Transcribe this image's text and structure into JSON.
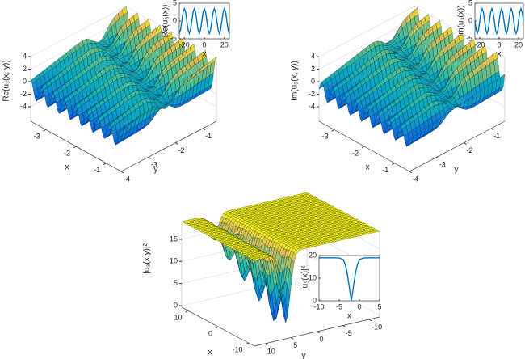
{
  "chart_data": [
    {
      "type": "surface",
      "zlabel": "Re(u₃(x, y))",
      "xlabel": "x",
      "ylabel": "y",
      "xlim": [
        -3.5,
        -0.5
      ],
      "xticks": [
        -3,
        -2,
        -1
      ],
      "ylim": [
        -4,
        -0.5
      ],
      "yticks": [
        -4,
        -3,
        -2,
        -1
      ],
      "zlim": [
        -4,
        4
      ],
      "zticks": [
        -4,
        -2,
        0,
        2,
        4
      ]
    },
    {
      "type": "line",
      "ylabel": "Re(u₃(x))",
      "xlabel": "x",
      "color": "#0072bd",
      "x": [
        -25,
        -23.75,
        -22.5,
        -21.25,
        -20,
        -18.75,
        -17.5,
        -16.25,
        -15,
        -13.75,
        -12.5,
        -11.25,
        -10,
        -8.75,
        -7.5,
        -6.25,
        -5,
        -3.75,
        -2.5,
        -1.25,
        0,
        1.25,
        2.5,
        3.75,
        5,
        6.25,
        7.5,
        8.75,
        10,
        11.25,
        12.5,
        13.75,
        15,
        16.25,
        17.5,
        18.75,
        20,
        21.25,
        22.5,
        23.75,
        25
      ],
      "values": [
        -3.5,
        -2.47,
        0,
        2.47,
        3.5,
        2.47,
        0,
        -2.47,
        -3.5,
        -2.47,
        0,
        2.47,
        3.5,
        2.47,
        0,
        -2.47,
        -3.5,
        -2.47,
        0,
        2.47,
        3.5,
        2.47,
        0,
        -2.47,
        -3.5,
        -2.47,
        0,
        2.47,
        3.5,
        2.47,
        0,
        -2.47,
        -3.5,
        -2.47,
        0,
        2.47,
        3.5,
        2.47,
        0,
        -2.47,
        -3.5
      ],
      "xlim": [
        -25,
        25
      ],
      "xticks": [
        -20,
        0,
        20
      ],
      "ylim": [
        -5,
        5
      ],
      "yticks": [
        -5,
        0,
        5
      ]
    },
    {
      "type": "surface",
      "zlabel": "Im(u₃(x, y))",
      "xlabel": "x",
      "ylabel": "y",
      "xlim": [
        -3.5,
        -0.5
      ],
      "xticks": [
        -3,
        -2,
        -1
      ],
      "ylim": [
        -4,
        -0.5
      ],
      "yticks": [
        -4,
        -3,
        -2,
        -1
      ],
      "zlim": [
        -4,
        4
      ],
      "zticks": [
        -4,
        -2,
        0,
        2,
        4
      ]
    },
    {
      "type": "line",
      "ylabel": "Im(u₃(x))",
      "xlabel": "x",
      "color": "#0072bd",
      "x": [
        -25,
        -23.75,
        -22.5,
        -21.25,
        -20,
        -18.75,
        -17.5,
        -16.25,
        -15,
        -13.75,
        -12.5,
        -11.25,
        -10,
        -8.75,
        -7.5,
        -6.25,
        -5,
        -3.75,
        -2.5,
        -1.25,
        0,
        1.25,
        2.5,
        3.75,
        5,
        6.25,
        7.5,
        8.75,
        10,
        11.25,
        12.5,
        13.75,
        15,
        16.25,
        17.5,
        18.75,
        20,
        21.25,
        22.5,
        23.75,
        25
      ],
      "values": [
        0,
        -2.47,
        -3.5,
        -2.47,
        0,
        2.47,
        3.5,
        2.47,
        0,
        -2.47,
        -3.5,
        -2.47,
        0,
        2.47,
        3.5,
        2.47,
        0,
        -2.47,
        -3.5,
        -2.47,
        0,
        2.47,
        3.5,
        2.47,
        0,
        -2.47,
        -3.5,
        -2.47,
        0,
        2.47,
        3.5,
        2.47,
        0,
        -2.47,
        -3.5,
        -2.47,
        0,
        2.47,
        3.5,
        2.47,
        0
      ],
      "xlim": [
        -25,
        25
      ],
      "xticks": [
        -20,
        0,
        20
      ],
      "ylim": [
        -5,
        5
      ],
      "yticks": [
        -5,
        0,
        5
      ]
    },
    {
      "type": "surface",
      "zlabel": "|u₃(x,y)|²",
      "xlabel": "x",
      "ylabel": "y",
      "xlim": [
        12,
        -12
      ],
      "xticks": [
        10,
        0,
        -10
      ],
      "ylim": [
        12,
        -12
      ],
      "yticks": [
        10,
        5,
        0,
        -5,
        -10
      ],
      "zlim": [
        0,
        19
      ],
      "zticks": [
        0,
        5,
        10,
        15
      ]
    },
    {
      "type": "line",
      "ylabel": "|u₃(x)|²",
      "xlabel": "x",
      "color": "#0072bd",
      "x": [
        -10,
        -8,
        -6,
        -5,
        -4,
        -3.5,
        -3,
        -2.5,
        -2,
        -1.5,
        -1,
        -0.5,
        0,
        1,
        3,
        5
      ],
      "values": [
        19,
        19,
        19,
        18.9,
        18.2,
        16,
        12,
        6,
        0,
        6,
        12,
        16,
        18.2,
        18.9,
        19,
        19
      ],
      "xlim": [
        -10,
        5
      ],
      "xticks": [
        -10,
        -5,
        0,
        5
      ],
      "ylim": [
        0,
        20
      ],
      "yticks": [
        0,
        10,
        20
      ]
    }
  ]
}
